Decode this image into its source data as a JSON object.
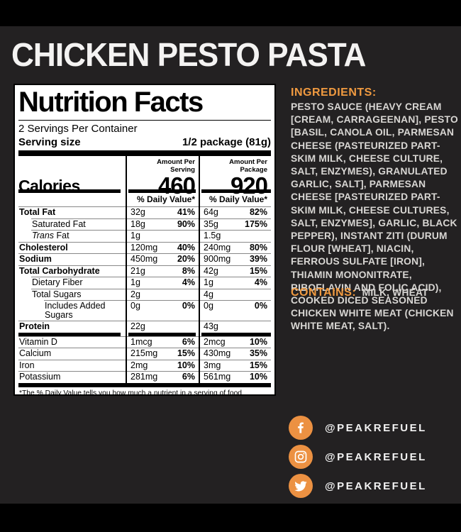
{
  "page": {
    "background_color": "#232122",
    "accent_orange": "#f09a40",
    "title": "CHICKEN PESTO PASTA"
  },
  "nutrition": {
    "heading": "Nutrition Facts",
    "servings_per_container": "2 Servings Per Container",
    "serving_size_label": "Serving size",
    "serving_size_value": "1/2 package (81g)",
    "calories_label": "Calories",
    "columns": [
      {
        "header": "Amount Per Serving",
        "calories": "460",
        "dv_header": "% Daily Value*"
      },
      {
        "header": "Amount Per Package",
        "calories": "920",
        "dv_header": "% Daily Value*"
      }
    ],
    "rows": [
      {
        "name": "Total Fat",
        "bold": true,
        "indent": 0,
        "per_serving": {
          "amount": "32g",
          "dv": "41%"
        },
        "per_package": {
          "amount": "64g",
          "dv": "82%"
        }
      },
      {
        "name": "Saturated Fat",
        "bold": false,
        "indent": 1,
        "per_serving": {
          "amount": "18g",
          "dv": "90%"
        },
        "per_package": {
          "amount": "35g",
          "dv": "175%"
        }
      },
      {
        "name": "Trans Fat",
        "italic_prefix": "Trans",
        "bold": false,
        "indent": 1,
        "per_serving": {
          "amount": "1g",
          "dv": ""
        },
        "per_package": {
          "amount": "1.5g",
          "dv": ""
        }
      },
      {
        "name": "Cholesterol",
        "bold": true,
        "indent": 0,
        "per_serving": {
          "amount": "120mg",
          "dv": "40%"
        },
        "per_package": {
          "amount": "240mg",
          "dv": "80%"
        }
      },
      {
        "name": "Sodium",
        "bold": true,
        "indent": 0,
        "per_serving": {
          "amount": "450mg",
          "dv": "20%"
        },
        "per_package": {
          "amount": "900mg",
          "dv": "39%"
        }
      },
      {
        "name": "Total Carbohydrate",
        "bold": true,
        "indent": 0,
        "per_serving": {
          "amount": "21g",
          "dv": "8%"
        },
        "per_package": {
          "amount": "42g",
          "dv": "15%"
        }
      },
      {
        "name": "Dietary Fiber",
        "bold": false,
        "indent": 1,
        "per_serving": {
          "amount": "1g",
          "dv": "4%"
        },
        "per_package": {
          "amount": "1g",
          "dv": "4%"
        }
      },
      {
        "name": "Total Sugars",
        "bold": false,
        "indent": 1,
        "per_serving": {
          "amount": "2g",
          "dv": ""
        },
        "per_package": {
          "amount": "4g",
          "dv": ""
        }
      },
      {
        "name": "Includes Added Sugars",
        "bold": false,
        "indent": 2,
        "per_serving": {
          "amount": "0g",
          "dv": "0%"
        },
        "per_package": {
          "amount": "0g",
          "dv": "0%"
        }
      },
      {
        "name": "Protein",
        "bold": true,
        "indent": 0,
        "per_serving": {
          "amount": "22g",
          "dv": ""
        },
        "per_package": {
          "amount": "43g",
          "dv": ""
        }
      }
    ],
    "vitamins": [
      {
        "name": "Vitamin D",
        "bold": false,
        "indent": 0,
        "per_serving": {
          "amount": "1mcg",
          "dv": "6%"
        },
        "per_package": {
          "amount": "2mcg",
          "dv": "10%"
        }
      },
      {
        "name": "Calcium",
        "bold": false,
        "indent": 0,
        "per_serving": {
          "amount": "215mg",
          "dv": "15%"
        },
        "per_package": {
          "amount": "430mg",
          "dv": "35%"
        }
      },
      {
        "name": "Iron",
        "bold": false,
        "indent": 0,
        "per_serving": {
          "amount": "2mg",
          "dv": "10%"
        },
        "per_package": {
          "amount": "3mg",
          "dv": "15%"
        }
      },
      {
        "name": "Potassium",
        "bold": false,
        "indent": 0,
        "per_serving": {
          "amount": "281mg",
          "dv": "6%"
        },
        "per_package": {
          "amount": "561mg",
          "dv": "10%"
        }
      }
    ],
    "footnote": "*The % Daily Value tells you how much a nutrient in a serving of food contributes to a daily diet. 2,000 calories a day is used for general nutrition advice."
  },
  "ingredients": {
    "heading": "INGREDIENTS:",
    "text": "PESTO SAUCE (HEAVY CREAM [CREAM, CARRAGEENAN], PESTO [BASIL, CANOLA OIL, PARMESAN CHEESE (PASTEURIZED PART-SKIM MILK, CHEESE CULTURE, SALT, ENZYMES), GRANULATED GARLIC, SALT], PARMESAN CHEESE [PASTEURIZED PART-SKIM MILK, CHEESE CULTURES, SALT, ENZYMES], GARLIC, BLACK PEPPER), INSTANT ZITI (DURUM FLOUR [WHEAT], NIACIN, FERROUS SULFATE [IRON], THIAMIN MONONITRATE, RIBOFLAVIN AND FOLIC ACID), COOKED DICED SEASONED CHICKEN WHITE MEAT (CHICKEN WHITE MEAT, SALT)."
  },
  "contains": {
    "heading": "CONTAINS:",
    "text": "MILK, WHEAT"
  },
  "social": {
    "items": [
      {
        "network": "facebook",
        "handle": "@PEAKREFUEL"
      },
      {
        "network": "instagram",
        "handle": "@PEAKREFUEL"
      },
      {
        "network": "twitter",
        "handle": "@PEAKREFUEL"
      }
    ]
  }
}
